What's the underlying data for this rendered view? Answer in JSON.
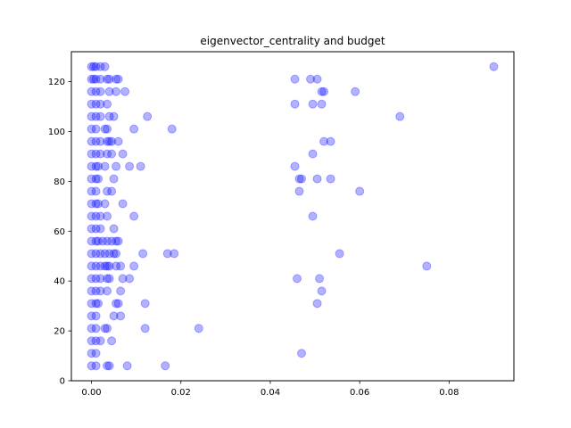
{
  "chart_data": {
    "type": "scatter",
    "title": "eigenvector_centrality and budget",
    "xlabel": "",
    "ylabel": "",
    "xlim": [
      -0.0045,
      0.0945
    ],
    "ylim": [
      0,
      132
    ],
    "x_ticks": [
      0.0,
      0.02,
      0.04,
      0.06,
      0.08
    ],
    "x_tick_labels": [
      "0.00",
      "0.02",
      "0.04",
      "0.06",
      "0.08"
    ],
    "y_ticks": [
      0,
      20,
      40,
      60,
      80,
      100,
      120
    ],
    "y_tick_labels": [
      "0",
      "20",
      "40",
      "60",
      "80",
      "100",
      "120"
    ],
    "grid": false,
    "legend": "none",
    "marker_color": "#0000ff",
    "marker_alpha": 0.3,
    "points": [
      {
        "x": 0.0,
        "y": 126
      },
      {
        "x": 0.0005,
        "y": 126
      },
      {
        "x": 0.001,
        "y": 126
      },
      {
        "x": 0.002,
        "y": 126
      },
      {
        "x": 0.003,
        "y": 126
      },
      {
        "x": 0.09,
        "y": 126
      },
      {
        "x": 0.0,
        "y": 121
      },
      {
        "x": 0.0005,
        "y": 121
      },
      {
        "x": 0.001,
        "y": 121
      },
      {
        "x": 0.002,
        "y": 121
      },
      {
        "x": 0.0035,
        "y": 121
      },
      {
        "x": 0.004,
        "y": 121
      },
      {
        "x": 0.0055,
        "y": 121
      },
      {
        "x": 0.006,
        "y": 121
      },
      {
        "x": 0.0455,
        "y": 121
      },
      {
        "x": 0.049,
        "y": 121
      },
      {
        "x": 0.0505,
        "y": 121
      },
      {
        "x": 0.0,
        "y": 116
      },
      {
        "x": 0.001,
        "y": 116
      },
      {
        "x": 0.002,
        "y": 116
      },
      {
        "x": 0.004,
        "y": 116
      },
      {
        "x": 0.0055,
        "y": 116
      },
      {
        "x": 0.0075,
        "y": 116
      },
      {
        "x": 0.0515,
        "y": 116
      },
      {
        "x": 0.052,
        "y": 116
      },
      {
        "x": 0.059,
        "y": 116
      },
      {
        "x": 0.0,
        "y": 111
      },
      {
        "x": 0.001,
        "y": 111
      },
      {
        "x": 0.002,
        "y": 111
      },
      {
        "x": 0.0035,
        "y": 111
      },
      {
        "x": 0.0455,
        "y": 111
      },
      {
        "x": 0.0495,
        "y": 111
      },
      {
        "x": 0.0515,
        "y": 111
      },
      {
        "x": 0.0,
        "y": 106
      },
      {
        "x": 0.001,
        "y": 106
      },
      {
        "x": 0.002,
        "y": 106
      },
      {
        "x": 0.004,
        "y": 106
      },
      {
        "x": 0.005,
        "y": 106
      },
      {
        "x": 0.0125,
        "y": 106
      },
      {
        "x": 0.069,
        "y": 106
      },
      {
        "x": 0.0,
        "y": 101
      },
      {
        "x": 0.001,
        "y": 101
      },
      {
        "x": 0.003,
        "y": 101
      },
      {
        "x": 0.0035,
        "y": 101
      },
      {
        "x": 0.0095,
        "y": 101
      },
      {
        "x": 0.018,
        "y": 101
      },
      {
        "x": 0.0,
        "y": 96
      },
      {
        "x": 0.001,
        "y": 96
      },
      {
        "x": 0.002,
        "y": 96
      },
      {
        "x": 0.0035,
        "y": 96
      },
      {
        "x": 0.004,
        "y": 96
      },
      {
        "x": 0.0045,
        "y": 96
      },
      {
        "x": 0.006,
        "y": 96
      },
      {
        "x": 0.052,
        "y": 96
      },
      {
        "x": 0.0535,
        "y": 96
      },
      {
        "x": 0.0,
        "y": 91
      },
      {
        "x": 0.001,
        "y": 91
      },
      {
        "x": 0.002,
        "y": 91
      },
      {
        "x": 0.0035,
        "y": 91
      },
      {
        "x": 0.0045,
        "y": 91
      },
      {
        "x": 0.007,
        "y": 91
      },
      {
        "x": 0.0495,
        "y": 91
      },
      {
        "x": 0.0,
        "y": 86
      },
      {
        "x": 0.001,
        "y": 86
      },
      {
        "x": 0.0015,
        "y": 86
      },
      {
        "x": 0.003,
        "y": 86
      },
      {
        "x": 0.0055,
        "y": 86
      },
      {
        "x": 0.0085,
        "y": 86
      },
      {
        "x": 0.011,
        "y": 86
      },
      {
        "x": 0.0455,
        "y": 86
      },
      {
        "x": 0.0,
        "y": 81
      },
      {
        "x": 0.001,
        "y": 81
      },
      {
        "x": 0.0015,
        "y": 81
      },
      {
        "x": 0.005,
        "y": 81
      },
      {
        "x": 0.0465,
        "y": 81
      },
      {
        "x": 0.047,
        "y": 81
      },
      {
        "x": 0.0505,
        "y": 81
      },
      {
        "x": 0.0535,
        "y": 81
      },
      {
        "x": 0.0,
        "y": 76
      },
      {
        "x": 0.001,
        "y": 76
      },
      {
        "x": 0.0035,
        "y": 76
      },
      {
        "x": 0.0045,
        "y": 76
      },
      {
        "x": 0.0465,
        "y": 76
      },
      {
        "x": 0.06,
        "y": 76
      },
      {
        "x": 0.0,
        "y": 71
      },
      {
        "x": 0.001,
        "y": 71
      },
      {
        "x": 0.0015,
        "y": 71
      },
      {
        "x": 0.003,
        "y": 71
      },
      {
        "x": 0.007,
        "y": 71
      },
      {
        "x": 0.0,
        "y": 66
      },
      {
        "x": 0.001,
        "y": 66
      },
      {
        "x": 0.002,
        "y": 66
      },
      {
        "x": 0.0035,
        "y": 66
      },
      {
        "x": 0.0095,
        "y": 66
      },
      {
        "x": 0.0495,
        "y": 66
      },
      {
        "x": 0.0,
        "y": 61
      },
      {
        "x": 0.001,
        "y": 61
      },
      {
        "x": 0.002,
        "y": 61
      },
      {
        "x": 0.005,
        "y": 61
      },
      {
        "x": 0.0,
        "y": 56
      },
      {
        "x": 0.001,
        "y": 56
      },
      {
        "x": 0.0015,
        "y": 56
      },
      {
        "x": 0.0025,
        "y": 56
      },
      {
        "x": 0.0035,
        "y": 56
      },
      {
        "x": 0.0045,
        "y": 56
      },
      {
        "x": 0.0055,
        "y": 56
      },
      {
        "x": 0.006,
        "y": 56
      },
      {
        "x": 0.0,
        "y": 51
      },
      {
        "x": 0.001,
        "y": 51
      },
      {
        "x": 0.002,
        "y": 51
      },
      {
        "x": 0.003,
        "y": 51
      },
      {
        "x": 0.004,
        "y": 51
      },
      {
        "x": 0.005,
        "y": 51
      },
      {
        "x": 0.0055,
        "y": 51
      },
      {
        "x": 0.0115,
        "y": 51
      },
      {
        "x": 0.017,
        "y": 51
      },
      {
        "x": 0.0185,
        "y": 51
      },
      {
        "x": 0.0555,
        "y": 51
      },
      {
        "x": 0.0,
        "y": 46
      },
      {
        "x": 0.001,
        "y": 46
      },
      {
        "x": 0.002,
        "y": 46
      },
      {
        "x": 0.003,
        "y": 46
      },
      {
        "x": 0.0035,
        "y": 46
      },
      {
        "x": 0.004,
        "y": 46
      },
      {
        "x": 0.0055,
        "y": 46
      },
      {
        "x": 0.0065,
        "y": 46
      },
      {
        "x": 0.0095,
        "y": 46
      },
      {
        "x": 0.075,
        "y": 46
      },
      {
        "x": 0.0,
        "y": 41
      },
      {
        "x": 0.001,
        "y": 41
      },
      {
        "x": 0.002,
        "y": 41
      },
      {
        "x": 0.0035,
        "y": 41
      },
      {
        "x": 0.004,
        "y": 41
      },
      {
        "x": 0.007,
        "y": 41
      },
      {
        "x": 0.0085,
        "y": 41
      },
      {
        "x": 0.046,
        "y": 41
      },
      {
        "x": 0.051,
        "y": 41
      },
      {
        "x": 0.0,
        "y": 36
      },
      {
        "x": 0.001,
        "y": 36
      },
      {
        "x": 0.002,
        "y": 36
      },
      {
        "x": 0.0035,
        "y": 36
      },
      {
        "x": 0.0065,
        "y": 36
      },
      {
        "x": 0.0515,
        "y": 36
      },
      {
        "x": 0.0,
        "y": 31
      },
      {
        "x": 0.001,
        "y": 31
      },
      {
        "x": 0.0015,
        "y": 31
      },
      {
        "x": 0.0055,
        "y": 31
      },
      {
        "x": 0.006,
        "y": 31
      },
      {
        "x": 0.012,
        "y": 31
      },
      {
        "x": 0.0505,
        "y": 31
      },
      {
        "x": 0.0,
        "y": 26
      },
      {
        "x": 0.001,
        "y": 26
      },
      {
        "x": 0.005,
        "y": 26
      },
      {
        "x": 0.0065,
        "y": 26
      },
      {
        "x": 0.0,
        "y": 21
      },
      {
        "x": 0.001,
        "y": 21
      },
      {
        "x": 0.003,
        "y": 21
      },
      {
        "x": 0.0035,
        "y": 21
      },
      {
        "x": 0.012,
        "y": 21
      },
      {
        "x": 0.024,
        "y": 21
      },
      {
        "x": 0.0,
        "y": 16
      },
      {
        "x": 0.001,
        "y": 16
      },
      {
        "x": 0.002,
        "y": 16
      },
      {
        "x": 0.0045,
        "y": 16
      },
      {
        "x": 0.0,
        "y": 11
      },
      {
        "x": 0.001,
        "y": 11
      },
      {
        "x": 0.047,
        "y": 11
      },
      {
        "x": 0.0,
        "y": 6
      },
      {
        "x": 0.001,
        "y": 6
      },
      {
        "x": 0.0035,
        "y": 6
      },
      {
        "x": 0.004,
        "y": 6
      },
      {
        "x": 0.008,
        "y": 6
      },
      {
        "x": 0.0165,
        "y": 6
      }
    ]
  }
}
